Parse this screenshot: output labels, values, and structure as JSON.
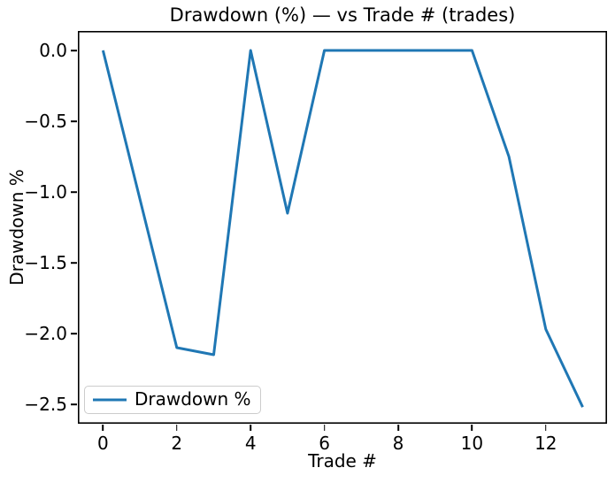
{
  "chart_data": {
    "type": "line",
    "title": "Drawdown (%) — vs Trade # (trades)",
    "xlabel": "Trade #",
    "ylabel": "Drawdown %",
    "grid": false,
    "legend_position": "lower left",
    "line_color": "#1f77b4",
    "axis_color": "#000000",
    "legend_border_color": "#cccccc",
    "x": [
      0,
      1,
      2,
      3,
      4,
      5,
      6,
      7,
      8,
      9,
      10,
      11,
      12,
      13
    ],
    "series": [
      {
        "name": "Drawdown %",
        "values": [
          0.0,
          -1.05,
          -2.1,
          -2.15,
          0.0,
          -1.15,
          0.0,
          0.0,
          0.0,
          0.0,
          0.0,
          -0.75,
          -1.97,
          -2.52
        ]
      }
    ],
    "xlim": [
      -0.68,
      13.66
    ],
    "ylim": [
      -2.6375,
      0.1375
    ],
    "xticks": {
      "values": [
        0,
        2,
        4,
        6,
        8,
        10,
        12
      ],
      "labels": [
        "0",
        "2",
        "4",
        "6",
        "8",
        "10",
        "12"
      ]
    },
    "yticks": {
      "values": [
        0.0,
        -0.5,
        -1.0,
        -1.5,
        -2.0,
        -2.5
      ],
      "labels": [
        "0.0",
        "−0.5",
        "−1.0",
        "−1.5",
        "−2.0",
        "−2.5"
      ]
    }
  }
}
